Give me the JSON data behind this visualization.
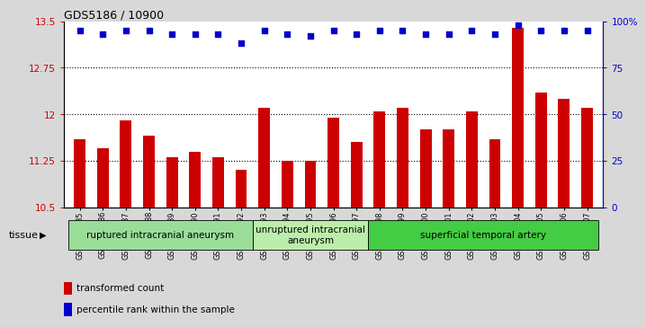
{
  "title": "GDS5186 / 10900",
  "samples": [
    "GSM1306885",
    "GSM1306886",
    "GSM1306887",
    "GSM1306888",
    "GSM1306889",
    "GSM1306890",
    "GSM1306891",
    "GSM1306892",
    "GSM1306893",
    "GSM1306894",
    "GSM1306895",
    "GSM1306896",
    "GSM1306897",
    "GSM1306898",
    "GSM1306899",
    "GSM1306900",
    "GSM1306901",
    "GSM1306902",
    "GSM1306903",
    "GSM1306904",
    "GSM1306905",
    "GSM1306906",
    "GSM1306907"
  ],
  "transformed_count": [
    11.6,
    11.45,
    11.9,
    11.65,
    11.3,
    11.4,
    11.3,
    11.1,
    12.1,
    11.25,
    11.25,
    11.95,
    11.55,
    12.05,
    12.1,
    11.75,
    11.75,
    12.05,
    11.6,
    13.4,
    12.35,
    12.25,
    12.1
  ],
  "percentile_rank": [
    95,
    93,
    95,
    95,
    93,
    93,
    93,
    88,
    95,
    93,
    92,
    95,
    93,
    95,
    95,
    93,
    93,
    95,
    93,
    98,
    95,
    95,
    95
  ],
  "bar_color": "#cc0000",
  "dot_color": "#0000cc",
  "ylim_left": [
    10.5,
    13.5
  ],
  "ylim_right": [
    0,
    100
  ],
  "yticks_left": [
    10.5,
    11.25,
    12.0,
    12.75,
    13.5
  ],
  "yticks_right": [
    0,
    25,
    50,
    75,
    100
  ],
  "ytick_labels_left": [
    "10.5",
    "11.25",
    "12",
    "12.75",
    "13.5"
  ],
  "ytick_labels_right": [
    "0",
    "25",
    "50",
    "75",
    "100%"
  ],
  "groups": [
    {
      "label": "ruptured intracranial aneurysm",
      "start": 0,
      "end": 8,
      "color": "#99dd99"
    },
    {
      "label": "unruptured intracranial\naneurysm",
      "start": 8,
      "end": 13,
      "color": "#bbeeaa"
    },
    {
      "label": "superficial temporal artery",
      "start": 13,
      "end": 23,
      "color": "#44cc44"
    }
  ],
  "tissue_label": "tissue",
  "legend_bar_label": "transformed count",
  "legend_dot_label": "percentile rank within the sample",
  "background_color": "#d8d8d8",
  "plot_bg_color": "#ffffff",
  "dotted_lines": [
    11.25,
    12.0,
    12.75
  ]
}
